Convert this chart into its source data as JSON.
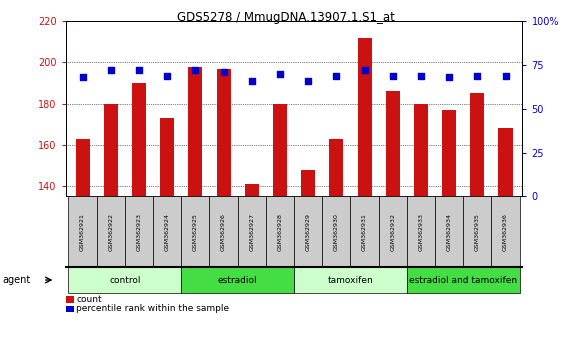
{
  "title": "GDS5278 / MmugDNA.13907.1.S1_at",
  "samples": [
    "GSM362921",
    "GSM362922",
    "GSM362923",
    "GSM362924",
    "GSM362925",
    "GSM362926",
    "GSM362927",
    "GSM362928",
    "GSM362929",
    "GSM362930",
    "GSM362931",
    "GSM362932",
    "GSM362933",
    "GSM362934",
    "GSM362935",
    "GSM362936"
  ],
  "counts": [
    163,
    180,
    190,
    173,
    198,
    197,
    141,
    180,
    148,
    163,
    212,
    186,
    180,
    177,
    185,
    168
  ],
  "percentile_ranks": [
    68,
    72,
    72,
    69,
    72,
    71,
    66,
    70,
    66,
    69,
    72,
    69,
    69,
    68,
    69,
    69
  ],
  "groups": [
    {
      "label": "control",
      "start": 0,
      "end": 4,
      "color": "#ccffcc"
    },
    {
      "label": "estradiol",
      "start": 4,
      "end": 8,
      "color": "#44dd44"
    },
    {
      "label": "tamoxifen",
      "start": 8,
      "end": 12,
      "color": "#ccffcc"
    },
    {
      "label": "estradiol and tamoxifen",
      "start": 12,
      "end": 16,
      "color": "#44dd44"
    }
  ],
  "ylim_left": [
    135,
    220
  ],
  "ylim_right": [
    0,
    100
  ],
  "yticks_left": [
    140,
    160,
    180,
    200,
    220
  ],
  "yticks_right": [
    0,
    25,
    50,
    75,
    100
  ],
  "bar_color": "#cc1111",
  "dot_color": "#0000cc",
  "bar_width": 0.5,
  "background_color": "#ffffff",
  "plot_bg_color": "#ffffff",
  "tick_box_color": "#cccccc",
  "legend_count_label": "count",
  "legend_percentile_label": "percentile rank within the sample",
  "agent_label": "agent"
}
